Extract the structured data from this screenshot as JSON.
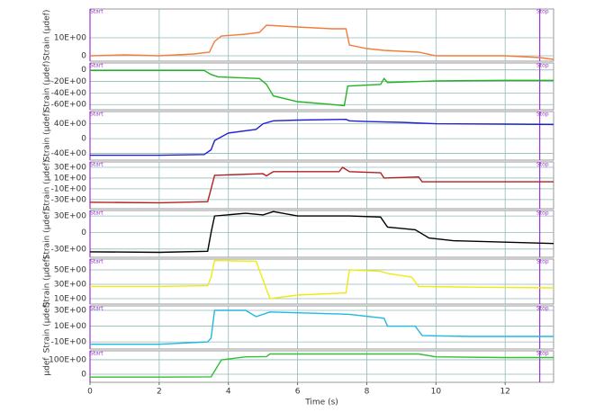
{
  "chart_data": [
    {
      "type": "line",
      "ylabel": "Strain (µdef)",
      "xlim": [
        0,
        13.4
      ],
      "ylim": [
        -3,
        26
      ],
      "yticks": [
        0,
        {
          "value": 10,
          "label": "10E+00"
        }
      ],
      "markers": [
        {
          "label": "Start",
          "x": 0
        },
        {
          "label": "Stop",
          "x": 13
        }
      ],
      "x": [
        0,
        1,
        2,
        3,
        3.45,
        3.6,
        3.8,
        4.5,
        4.9,
        5.1,
        6,
        7,
        7.4,
        7.5,
        8,
        8.5,
        9.5,
        10,
        11,
        12,
        13,
        13.4
      ],
      "series": [
        {
          "color": "#f47c3c",
          "values": [
            0,
            0.5,
            0,
            1,
            2,
            8,
            11,
            12,
            13,
            17,
            16,
            15,
            15,
            6,
            4,
            3,
            2,
            0,
            0,
            0,
            -1,
            -2
          ]
        }
      ]
    },
    {
      "type": "line",
      "ylabel": "Strain (µdef)",
      "xlim": [
        0,
        13.4
      ],
      "ylim": [
        -69,
        12
      ],
      "yticks": [
        0,
        {
          "value": -20,
          "label": "-20E+00"
        },
        {
          "value": -40,
          "label": "-40E+00"
        },
        {
          "value": -60,
          "label": "-60E+00"
        }
      ],
      "markers": [
        {
          "label": "Start",
          "x": 0
        },
        {
          "label": "Stop",
          "x": 13
        }
      ],
      "x": [
        0,
        2,
        3.3,
        3.5,
        3.7,
        4.5,
        4.9,
        5.1,
        5.3,
        6,
        7,
        7.35,
        7.45,
        8.4,
        8.5,
        8.6,
        10,
        12,
        13.4
      ],
      "series": [
        {
          "color": "#22b522",
          "values": [
            -1,
            -1,
            -1,
            -8,
            -12,
            -14,
            -15,
            -25,
            -45,
            -55,
            -60,
            -62,
            -28,
            -25,
            -15,
            -22,
            -19,
            -18,
            -18
          ]
        }
      ]
    },
    {
      "type": "line",
      "ylabel": "Strain (µdef)",
      "xlim": [
        0,
        13.4
      ],
      "ylim": [
        -58,
        73
      ],
      "yticks": [
        {
          "value": 40,
          "label": "40E+00"
        },
        0,
        {
          "value": -40,
          "label": "-40E+00"
        }
      ],
      "markers": [
        {
          "label": "Start",
          "x": 0
        },
        {
          "label": "Stop",
          "x": 13
        }
      ],
      "x": [
        0,
        2,
        3.3,
        3.5,
        3.6,
        4,
        4.8,
        5,
        5.3,
        6,
        7.4,
        7.5,
        8,
        9,
        10,
        12,
        13.4
      ],
      "series": [
        {
          "color": "#2020d0",
          "values": [
            -45,
            -45,
            -43,
            -30,
            -5,
            15,
            25,
            40,
            48,
            50,
            52,
            48,
            46,
            44,
            40,
            39,
            38
          ]
        }
      ]
    },
    {
      "type": "line",
      "ylabel": "Strain (µdef)",
      "xlim": [
        0,
        13.4
      ],
      "ylim": [
        -47,
        40
      ],
      "yticks": [
        {
          "value": 30,
          "label": "30E+00"
        },
        {
          "value": 10,
          "label": "10E+00"
        },
        {
          "value": -10,
          "label": "-10E+00"
        },
        {
          "value": -30,
          "label": "-30E+00"
        }
      ],
      "markers": [
        {
          "label": "Start",
          "x": 0
        },
        {
          "label": "Stop",
          "x": 13
        }
      ],
      "x": [
        0,
        2,
        3.4,
        3.5,
        3.6,
        5,
        5.1,
        5.3,
        7.2,
        7.3,
        7.5,
        8.4,
        8.5,
        9.5,
        9.6,
        11,
        13.4
      ],
      "series": [
        {
          "color": "#b22020",
          "values": [
            -35,
            -36,
            -34,
            -10,
            15,
            18,
            14,
            22,
            22,
            30,
            22,
            20,
            10,
            12,
            3,
            3,
            3
          ]
        }
      ]
    },
    {
      "type": "line",
      "ylabel": "Strain (µdef)",
      "xlim": [
        0,
        13.4
      ],
      "ylim": [
        -45,
        40
      ],
      "yticks": [
        {
          "value": 30,
          "label": "30E+00"
        },
        0,
        {
          "value": -30,
          "label": "-30E+00"
        }
      ],
      "markers": [
        {
          "label": "Start",
          "x": 0
        },
        {
          "label": "Stop",
          "x": 13
        }
      ],
      "x": [
        0,
        2,
        3.4,
        3.5,
        3.6,
        4.5,
        5,
        5.3,
        6,
        7.5,
        8.4,
        8.6,
        9.4,
        9.8,
        10.5,
        13.4
      ],
      "series": [
        {
          "color": "#000000",
          "values": [
            -35,
            -36,
            -34,
            0,
            30,
            35,
            32,
            38,
            30,
            30,
            28,
            10,
            5,
            -10,
            -15,
            -20
          ]
        }
      ]
    },
    {
      "type": "line",
      "ylabel": "Strain (µdef)",
      "xlim": [
        0,
        13.4
      ],
      "ylim": [
        2.5,
        65
      ],
      "yticks": [
        {
          "value": 50,
          "label": "50E+00"
        },
        {
          "value": 30,
          "label": "30E+00"
        },
        {
          "value": 10,
          "label": "10E+00"
        }
      ],
      "markers": [
        {
          "label": "Start",
          "x": 0
        },
        {
          "label": "Stop",
          "x": 13
        }
      ],
      "x": [
        0,
        2,
        3.4,
        3.5,
        3.6,
        4.8,
        5.2,
        6,
        7.4,
        7.5,
        8.4,
        8.6,
        9.3,
        9.5,
        11,
        13.4
      ],
      "series": [
        {
          "color": "#ecec10",
          "values": [
            27,
            27,
            28,
            40,
            63,
            62,
            10,
            15,
            18,
            50,
            48,
            45,
            40,
            27,
            26,
            25
          ]
        }
      ]
    },
    {
      "type": "line",
      "ylabel": "Strain (µdef)",
      "xlim": [
        0,
        13.4
      ],
      "ylim": [
        -19,
        35.7
      ],
      "yticks": [
        {
          "value": 30,
          "label": "30E+00"
        },
        {
          "value": 10,
          "label": "10E+00"
        },
        {
          "value": -10,
          "label": "-10E+00"
        }
      ],
      "markers": [
        {
          "label": "Start",
          "x": 0
        },
        {
          "label": "Stop",
          "x": 13
        }
      ],
      "x": [
        0,
        2,
        3.4,
        3.5,
        3.6,
        4.5,
        4.8,
        5.2,
        7.5,
        8.5,
        8.6,
        9.4,
        9.6,
        11,
        13.4
      ],
      "series": [
        {
          "color": "#20b8e0",
          "values": [
            -13,
            -13,
            -10,
            -5,
            30,
            30,
            22,
            28,
            25,
            20,
            10,
            10,
            -2,
            -3,
            -3
          ]
        }
      ]
    },
    {
      "type": "line",
      "ylabel": "µdef",
      "xlabel": "Time (s)",
      "xlim": [
        0,
        13.4
      ],
      "ylim": [
        -56,
        162
      ],
      "xticks": [
        0,
        2,
        4,
        6,
        8,
        10,
        12
      ],
      "yticks": [
        {
          "value": 100,
          "label": "100E+00"
        },
        0
      ],
      "markers": [
        {
          "label": "Start",
          "x": 0
        },
        {
          "label": "Stop",
          "x": 13
        }
      ],
      "x": [
        0,
        2,
        3.5,
        3.8,
        4.5,
        5.1,
        5.2,
        9.5,
        10,
        12,
        13.4
      ],
      "series": [
        {
          "color": "#30c030",
          "values": [
            -20,
            -20,
            -18,
            100,
            120,
            122,
            140,
            140,
            120,
            115,
            115
          ]
        }
      ]
    }
  ]
}
